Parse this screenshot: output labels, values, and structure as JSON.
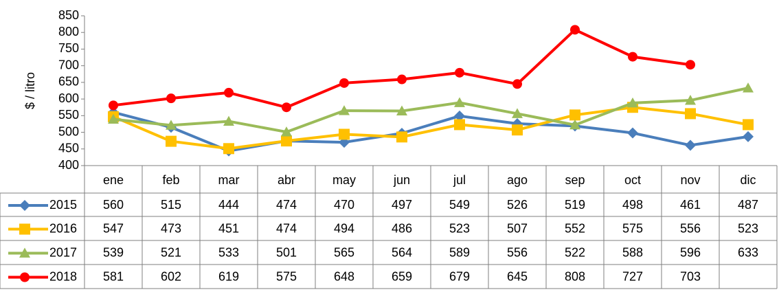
{
  "chart_data": {
    "type": "line",
    "y_label": "$ / litro",
    "categories": [
      "ene",
      "feb",
      "mar",
      "abr",
      "may",
      "jun",
      "jul",
      "ago",
      "sep",
      "oct",
      "nov",
      "dic"
    ],
    "series": [
      {
        "name": "2015",
        "color": "#4a7ebb",
        "marker": "diamond",
        "values": [
          560,
          515,
          444,
          474,
          470,
          497,
          549,
          526,
          519,
          498,
          461,
          487
        ]
      },
      {
        "name": "2016",
        "color": "#ffc000",
        "marker": "square",
        "values": [
          547,
          473,
          451,
          474,
          494,
          486,
          523,
          507,
          552,
          575,
          556,
          523
        ]
      },
      {
        "name": "2017",
        "color": "#9bbb59",
        "marker": "triangle",
        "values": [
          539,
          521,
          533,
          501,
          565,
          564,
          589,
          556,
          522,
          588,
          596,
          633
        ]
      },
      {
        "name": "2018",
        "color": "#ff0000",
        "marker": "circle",
        "values": [
          581,
          602,
          619,
          575,
          648,
          659,
          679,
          645,
          808,
          727,
          703,
          null
        ]
      }
    ],
    "ylim": [
      400,
      850
    ],
    "yticks": [
      400,
      450,
      500,
      550,
      600,
      650,
      700,
      750,
      800,
      850
    ],
    "grid": false
  }
}
